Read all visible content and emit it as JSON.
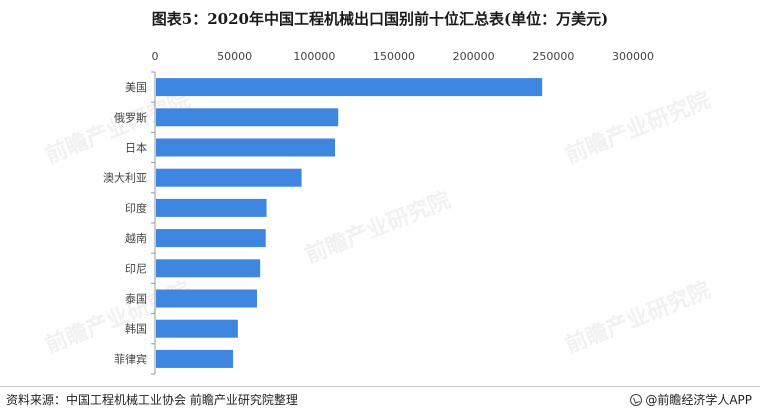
{
  "title": "图表5：2020年中国工程机械出口国别前十位汇总表(单位：万美元)",
  "footer": {
    "source": "资料来源：中国工程机械工业协会 前瞻产业研究院整理",
    "brand": "@前瞻经济学人APP"
  },
  "watermark": "前瞻产业研究院",
  "colors": {
    "bar": "#3f86e0",
    "axis": "#9a9a9a"
  },
  "chart_data": {
    "type": "bar",
    "orientation": "horizontal",
    "xaxis_position": "top",
    "xlim": [
      0,
      300000
    ],
    "xticks": [
      0,
      50000,
      100000,
      150000,
      200000,
      250000,
      300000
    ],
    "categories": [
      "美国",
      "俄罗斯",
      "日本",
      "澳大利亚",
      "印度",
      "越南",
      "印尼",
      "泰国",
      "韩国",
      "菲律宾"
    ],
    "values": [
      243000,
      115000,
      113000,
      92000,
      70000,
      69500,
      66000,
      64000,
      52000,
      49000
    ],
    "grid": false,
    "legend": "none"
  }
}
